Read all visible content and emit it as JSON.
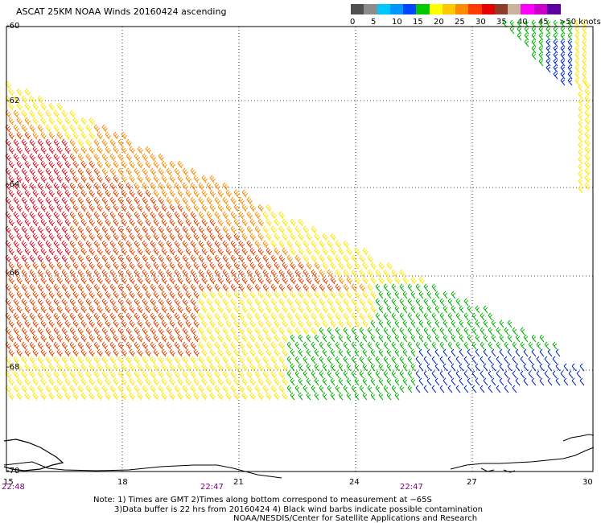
{
  "title": "ASCAT 25KM NOAA Winds 20160424 ascending",
  "scale": {
    "colors": [
      "#505050",
      "#8c8c8c",
      "#00c8ff",
      "#0096ff",
      "#0046ff",
      "#00c800",
      "#ffff00",
      "#ffc800",
      "#ff8c00",
      "#ff3c00",
      "#e60000",
      "#8c3c28",
      "#c8b49a",
      "#ff00ff",
      "#c800c8",
      "#5a00a0"
    ],
    "labels": [
      "0",
      "5",
      "10",
      "15",
      "20",
      "25",
      "30",
      "35",
      "40",
      "45",
      ">50 knots"
    ],
    "unit": "knots"
  },
  "lat_labels": [
    "-60",
    "-62",
    "-64",
    "-66",
    "-68",
    "-70"
  ],
  "lon_labels": [
    "15",
    "18",
    "21",
    "24",
    "27",
    "30"
  ],
  "time_labels": [
    "22:48",
    "22:47",
    "22:47"
  ],
  "notes": [
    "Note: 1) Times are GMT 2)Times along bottom correspond to measurement at −65S",
    "3)Data buffer is 22 hrs from 20160424 4) Black wind barbs indicate possible contamination",
    "NOAA/NESDIS/Center for Satellite Applications and Research"
  ],
  "colors": {
    "weak_blue": "#0028c8",
    "green": "#00b400",
    "yellow": "#ffe600",
    "orange": "#ff8c00",
    "red_orange": "#e64600",
    "red": "#dc1428",
    "magenta": "#c8006e"
  }
}
